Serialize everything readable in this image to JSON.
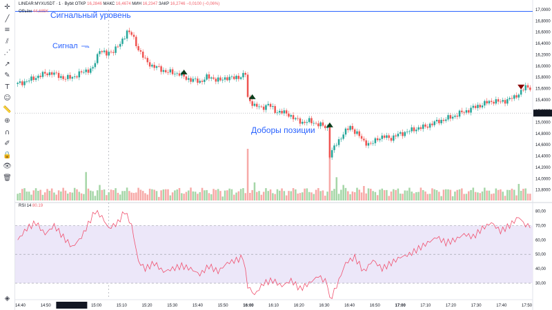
{
  "header": {
    "symbol": "LINEAR:MYXUSDT · 1 · Bybit",
    "open_label": "ОТКР",
    "open_value": "16,2846",
    "high_label": "МАКС",
    "high_value": "16,4674",
    "low_label": "МИН",
    "low_value": "16,2347",
    "close_label": "ЗАКР",
    "close_value": "16,2746",
    "change_value": "−0,0100 (−0,06%)",
    "volume_label": "Объём",
    "volume_value": "44,685K",
    "rsi_label": "RSI 14",
    "rsi_value": "80.19"
  },
  "annotations": {
    "signal_level": "Сигнальный уровень",
    "signal": "Сигнал",
    "signal_arrow": "→",
    "adds": "Доборы позиции"
  },
  "toolbar": {
    "icons": [
      "crosshair-icon",
      "trend-line-icon",
      "fib-icon",
      "channel-icon",
      "pattern-icon",
      "arrow-icon",
      "brush-icon",
      "text-icon",
      "emoji-icon",
      "ruler-icon",
      "zoom-icon",
      "magnet-icon",
      "lock-drawings-icon",
      "lock-icon",
      "eye-icon",
      "trash-icon",
      "layers-icon"
    ]
  },
  "colors": {
    "up": "#26a69a",
    "up_light": "#a5d6a7",
    "down": "#ef5350",
    "down_light": "#f7a9a7",
    "rsi_line": "#f0506e",
    "rsi_band": "#ece7f9",
    "accent": "#2962ff",
    "price_badge_bg": "#131722",
    "price_badge_text": "#ffffff"
  },
  "chart_data": [
    {
      "type": "candlestick",
      "title": "LINEAR:MYXUSDT · 1 · Bybit",
      "ylim": [
        13.6,
        17.0
      ],
      "y_ticks": [
        "17,0000",
        "16,8000",
        "16,6000",
        "16,4000",
        "16,2000",
        "16,0000",
        "15,8000",
        "15,6000",
        "15,4000",
        "15,2000",
        "15,0000",
        "14,8000",
        "14,6000",
        "14,4000",
        "14,2000",
        "14,0000",
        "13,8000"
      ],
      "current_price": "15,1635",
      "x_ticks": [
        "14:40",
        "14:50",
        "01 Окт '25",
        "15:00",
        "15:10",
        "15:20",
        "15:30",
        "15:40",
        "15:50",
        "16:00",
        "16:10",
        "16:20",
        "16:30",
        "16:40",
        "16:50",
        "17:00",
        "17:10",
        "17:20",
        "17:30",
        "17:40",
        "17:50"
      ],
      "close_path": [
        [
          0,
          15.68
        ],
        [
          3,
          15.72
        ],
        [
          6,
          15.76
        ],
        [
          9,
          15.82
        ],
        [
          12,
          15.86
        ],
        [
          15,
          15.88
        ],
        [
          18,
          15.82
        ],
        [
          21,
          15.78
        ],
        [
          24,
          15.8
        ],
        [
          27,
          15.86
        ],
        [
          30,
          15.92
        ],
        [
          33,
          15.95
        ],
        [
          36,
          16.3
        ],
        [
          39,
          16.2
        ],
        [
          42,
          16.28
        ],
        [
          45,
          16.38
        ],
        [
          48,
          16.62
        ],
        [
          50,
          16.56
        ],
        [
          53,
          16.3
        ],
        [
          56,
          16.1
        ],
        [
          59,
          16.0
        ],
        [
          62,
          15.96
        ],
        [
          65,
          15.9
        ],
        [
          68,
          15.88
        ],
        [
          71,
          15.86
        ],
        [
          74,
          15.78
        ],
        [
          77,
          15.75
        ],
        [
          80,
          15.72
        ],
        [
          83,
          15.8
        ],
        [
          86,
          15.78
        ],
        [
          89,
          15.74
        ],
        [
          92,
          15.8
        ],
        [
          95,
          15.78
        ],
        [
          98,
          15.82
        ],
        [
          100,
          15.86
        ],
        [
          101,
          15.42
        ],
        [
          104,
          15.3
        ],
        [
          107,
          15.25
        ],
        [
          110,
          15.32
        ],
        [
          113,
          15.2
        ],
        [
          116,
          15.18
        ],
        [
          119,
          15.14
        ],
        [
          122,
          15.05
        ],
        [
          125,
          15.0
        ],
        [
          128,
          15.02
        ],
        [
          131,
          14.98
        ],
        [
          133,
          14.95
        ],
        [
          136,
          14.9
        ],
        [
          137,
          14.42
        ],
        [
          140,
          14.62
        ],
        [
          143,
          14.8
        ],
        [
          146,
          14.92
        ],
        [
          149,
          14.8
        ],
        [
          152,
          14.66
        ],
        [
          155,
          14.6
        ],
        [
          158,
          14.72
        ],
        [
          161,
          14.74
        ],
        [
          164,
          14.72
        ],
        [
          167,
          14.78
        ],
        [
          170,
          14.82
        ],
        [
          173,
          14.86
        ],
        [
          176,
          14.9
        ],
        [
          179,
          14.92
        ],
        [
          182,
          14.98
        ],
        [
          185,
          15.02
        ],
        [
          188,
          15.06
        ],
        [
          191,
          15.1
        ],
        [
          194,
          15.16
        ],
        [
          197,
          15.2
        ],
        [
          200,
          15.26
        ],
        [
          203,
          15.3
        ],
        [
          206,
          15.35
        ],
        [
          209,
          15.38
        ],
        [
          212,
          15.36
        ],
        [
          215,
          15.4
        ],
        [
          218,
          15.44
        ],
        [
          221,
          15.55
        ],
        [
          223,
          15.62
        ]
      ],
      "markers": [
        {
          "bar": 73,
          "price": 15.9,
          "kind": "buy"
        },
        {
          "bar": 103,
          "price": 15.46,
          "kind": "buy"
        },
        {
          "bar": 137,
          "price": 14.96,
          "kind": "buy"
        },
        {
          "bar": 221,
          "price": 15.62,
          "kind": "sell"
        }
      ],
      "signal_level_price": 16.97
    },
    {
      "type": "bar",
      "title": "Объём",
      "spikes": [
        [
          30,
          0.55
        ],
        [
          36,
          0.3
        ],
        [
          101,
          1.0
        ],
        [
          104,
          0.35
        ],
        [
          137,
          0.95
        ],
        [
          140,
          0.45
        ],
        [
          143,
          0.3
        ],
        [
          152,
          0.28
        ],
        [
          220,
          0.32
        ]
      ]
    },
    {
      "type": "line",
      "title": "RSI 14",
      "ylim": [
        20,
        85
      ],
      "y_ticks": [
        "80,00",
        "70,00",
        "60,00",
        "50,00",
        "40,00",
        "30,00"
      ],
      "band": [
        30,
        70
      ],
      "mid": 50,
      "path": [
        [
          0,
          60
        ],
        [
          4,
          68
        ],
        [
          8,
          72
        ],
        [
          12,
          64
        ],
        [
          16,
          70
        ],
        [
          20,
          62
        ],
        [
          24,
          55
        ],
        [
          28,
          62
        ],
        [
          32,
          74
        ],
        [
          34,
          80
        ],
        [
          37,
          76
        ],
        [
          40,
          68
        ],
        [
          44,
          72
        ],
        [
          47,
          80
        ],
        [
          50,
          70
        ],
        [
          53,
          45
        ],
        [
          56,
          40
        ],
        [
          60,
          44
        ],
        [
          64,
          38
        ],
        [
          68,
          40
        ],
        [
          72,
          42
        ],
        [
          76,
          40
        ],
        [
          80,
          36
        ],
        [
          84,
          42
        ],
        [
          88,
          38
        ],
        [
          92,
          44
        ],
        [
          96,
          46
        ],
        [
          99,
          48
        ],
        [
          101,
          28
        ],
        [
          104,
          22
        ],
        [
          108,
          30
        ],
        [
          112,
          32
        ],
        [
          116,
          28
        ],
        [
          120,
          32
        ],
        [
          124,
          26
        ],
        [
          128,
          30
        ],
        [
          132,
          35
        ],
        [
          136,
          30
        ],
        [
          137,
          18
        ],
        [
          140,
          28
        ],
        [
          144,
          44
        ],
        [
          148,
          48
        ],
        [
          152,
          38
        ],
        [
          156,
          46
        ],
        [
          160,
          40
        ],
        [
          164,
          44
        ],
        [
          168,
          48
        ],
        [
          172,
          50
        ],
        [
          176,
          54
        ],
        [
          180,
          58
        ],
        [
          184,
          62
        ],
        [
          188,
          58
        ],
        [
          192,
          60
        ],
        [
          196,
          64
        ],
        [
          200,
          62
        ],
        [
          204,
          68
        ],
        [
          208,
          72
        ],
        [
          212,
          66
        ],
        [
          216,
          70
        ],
        [
          220,
          76
        ],
        [
          223,
          70
        ]
      ]
    }
  ]
}
